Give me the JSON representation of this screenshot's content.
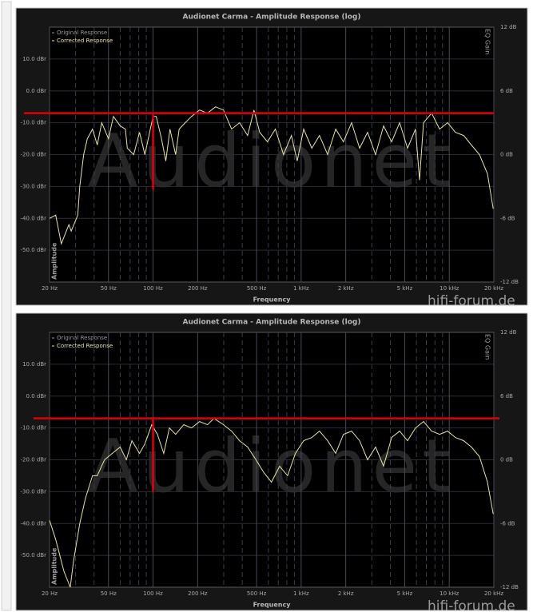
{
  "chart_data": [
    {
      "type": "line",
      "title": "Audionet Carma - Amplitude Response (log)",
      "x_label": "Frequency",
      "y_label": "Amplitude",
      "y2_label": "EQ Gain",
      "watermark": "Audionet",
      "site_watermark": "hifi-forum.de",
      "log_x": true,
      "grid": true,
      "xlim": [
        20,
        20000
      ],
      "ylim": [
        -60,
        20
      ],
      "y2lim": [
        -12,
        12
      ],
      "xticks": [
        {
          "value": 20,
          "label": "20 Hz"
        },
        {
          "value": 50,
          "label": "50 Hz"
        },
        {
          "value": 100,
          "label": "100 Hz"
        },
        {
          "value": 200,
          "label": "200 Hz"
        },
        {
          "value": 500,
          "label": "500 Hz"
        },
        {
          "value": 1000,
          "label": "1 kHz"
        },
        {
          "value": 2000,
          "label": "2 kHz"
        },
        {
          "value": 5000,
          "label": "5 kHz"
        },
        {
          "value": 10000,
          "label": "10 kHz"
        },
        {
          "value": 20000,
          "label": "20 kHz"
        }
      ],
      "xminorticks": [
        30,
        40,
        60,
        70,
        80,
        90,
        300,
        400,
        600,
        700,
        800,
        900,
        3000,
        4000,
        6000,
        7000,
        8000,
        9000
      ],
      "yticks": [
        {
          "value": -50,
          "label": "-50.0 dBr"
        },
        {
          "value": -40,
          "label": "-40.0 dBr"
        },
        {
          "value": -30,
          "label": "-30.0 dBr"
        },
        {
          "value": -20,
          "label": "-20.0 dBr"
        },
        {
          "value": -10,
          "label": "-10.0 dBr"
        },
        {
          "value": 0,
          "label": "0.0 dBr"
        },
        {
          "value": 10,
          "label": "10.0 dBr"
        }
      ],
      "y2ticks": [
        {
          "value": -12,
          "label": "-12 dB"
        },
        {
          "value": -6,
          "label": "-6 dB"
        },
        {
          "value": 0,
          "label": "0 dB"
        },
        {
          "value": 6,
          "label": "6 dB"
        },
        {
          "value": 12,
          "label": "12 dB"
        }
      ],
      "x": [
        20,
        22,
        24,
        27,
        28,
        31,
        32,
        34,
        36,
        39,
        42,
        45,
        50,
        54,
        60,
        65,
        67,
        74,
        81,
        88,
        100,
        105,
        114,
        122,
        130,
        142,
        150,
        165,
        182,
        206,
        233,
        264,
        299,
        339,
        384,
        435,
        480,
        525,
        592,
        670,
        760,
        860,
        940,
        1040,
        1180,
        1330,
        1510,
        1710,
        1930,
        2190,
        2480,
        2810,
        3180,
        3600,
        4080,
        4620,
        5230,
        5920,
        6300,
        6700,
        7600,
        8600,
        9740,
        11000,
        12500,
        14100,
        16000,
        18100,
        19800
      ],
      "series": [
        {
          "name": "Original Response",
          "color": "#9a9a9a",
          "values": [
            null,
            null,
            null,
            null,
            null,
            null,
            null,
            null,
            null,
            null,
            null,
            null,
            null,
            null,
            null,
            null,
            null,
            null,
            null,
            null,
            null,
            null,
            null,
            null,
            null,
            null,
            null,
            null,
            null,
            null,
            null,
            null,
            null,
            null,
            null,
            null,
            null,
            null,
            null,
            null,
            null,
            null,
            null,
            null,
            null,
            null,
            null,
            null,
            null,
            null,
            null,
            null,
            null,
            null,
            null,
            null,
            null,
            null,
            null,
            null,
            null,
            null,
            null,
            null,
            null,
            null,
            null,
            null,
            null
          ]
        },
        {
          "name": "Corrected Response",
          "color": "#e8e2a8",
          "values": [
            -40,
            -39,
            -48,
            -42,
            -44,
            -39,
            -30,
            -20,
            -15,
            -12,
            -17,
            -10,
            -15,
            -8,
            -11,
            -12,
            -18,
            -20,
            -13,
            -20,
            -8,
            -8,
            -15,
            -22,
            -12,
            -20,
            -12,
            -10,
            -8,
            -6,
            -7,
            -5,
            -6,
            -12,
            -10,
            -14,
            -6,
            -13,
            -16,
            -12,
            -20,
            -14,
            -22,
            -12,
            -18,
            -14,
            -20,
            -12,
            -16,
            -10,
            -18,
            -13,
            -20,
            -11,
            -16,
            -10,
            -18,
            -12,
            -28,
            -10,
            -7,
            -12,
            -10,
            -13,
            -14,
            -17,
            -20,
            -26,
            -37
          ]
        }
      ],
      "annotation_lines": {
        "color": "#e0000c",
        "hline": -7,
        "vline_x": 100,
        "vline_y": [
          -7,
          -31
        ]
      }
    },
    {
      "type": "line",
      "title": "Audionet Carma - Amplitude Response (log)",
      "x_label": "Frequency",
      "y_label": "Amplitude",
      "y2_label": "EQ Gain",
      "watermark": "Audionet",
      "site_watermark": "hifi-forum.de",
      "log_x": true,
      "grid": true,
      "xlim": [
        20,
        20000
      ],
      "ylim": [
        -60,
        20
      ],
      "y2lim": [
        -12,
        12
      ],
      "xticks": [
        {
          "value": 20,
          "label": "20 Hz"
        },
        {
          "value": 50,
          "label": "50 Hz"
        },
        {
          "value": 100,
          "label": "100 Hz"
        },
        {
          "value": 200,
          "label": "200 Hz"
        },
        {
          "value": 500,
          "label": "500 Hz"
        },
        {
          "value": 1000,
          "label": "1 kHz"
        },
        {
          "value": 2000,
          "label": "2 kHz"
        },
        {
          "value": 5000,
          "label": "5 kHz"
        },
        {
          "value": 10000,
          "label": "10 kHz"
        },
        {
          "value": 20000,
          "label": "20 kHz"
        }
      ],
      "xminorticks": [
        30,
        40,
        60,
        70,
        80,
        90,
        300,
        400,
        600,
        700,
        800,
        900,
        3000,
        4000,
        6000,
        7000,
        8000,
        9000
      ],
      "yticks": [
        {
          "value": -50,
          "label": "-50.0 dBr"
        },
        {
          "value": -40,
          "label": "-40.0 dBr"
        },
        {
          "value": -30,
          "label": "-30.0 dBr"
        },
        {
          "value": -20,
          "label": "-20.0 dBr"
        },
        {
          "value": -10,
          "label": "-10.0 dBr"
        },
        {
          "value": 0,
          "label": "0.0 dBr"
        },
        {
          "value": 10,
          "label": "10.0 dBr"
        }
      ],
      "y2ticks": [
        {
          "value": -12,
          "label": "-12 dB"
        },
        {
          "value": -6,
          "label": "-6 dB"
        },
        {
          "value": 0,
          "label": "0 dB"
        },
        {
          "value": 6,
          "label": "6 dB"
        },
        {
          "value": 12,
          "label": "12 dB"
        }
      ],
      "x": [
        20,
        22,
        25,
        27.6,
        29,
        32,
        35,
        39,
        42,
        47,
        53,
        60,
        66,
        72,
        81,
        88,
        98,
        107,
        118,
        129,
        142,
        161,
        182,
        206,
        233,
        258,
        299,
        339,
        384,
        435,
        495,
        560,
        630,
        715,
        810,
        915,
        1040,
        1180,
        1330,
        1510,
        1710,
        1930,
        2190,
        2480,
        2810,
        3180,
        3600,
        4080,
        4620,
        5230,
        5920,
        6700,
        7600,
        8600,
        9740,
        11000,
        12500,
        14100,
        16000,
        18100,
        19800
      ],
      "series": [
        {
          "name": "Original Response",
          "color": "#9a9a9a",
          "values": [
            null,
            null,
            null,
            null,
            null,
            null,
            null,
            null,
            null,
            null,
            null,
            null,
            null,
            null,
            null,
            null,
            null,
            null,
            null,
            null,
            null,
            null,
            null,
            null,
            null,
            null,
            null,
            null,
            null,
            null,
            null,
            null,
            null,
            null,
            null,
            null,
            null,
            null,
            null,
            null,
            null,
            null,
            null,
            null,
            null,
            null,
            null,
            null,
            null,
            null,
            null,
            null,
            null,
            null,
            null,
            null,
            null,
            null,
            null,
            null,
            null
          ]
        },
        {
          "name": "Corrected Response",
          "color": "#e8e2a8",
          "values": [
            -39,
            -45,
            -55,
            -60,
            -52,
            -40,
            -32,
            -25,
            -25,
            -20,
            -18,
            -16,
            -20,
            -14,
            -18,
            -15,
            -9,
            -12,
            -18,
            -10,
            -12,
            -9,
            -10,
            -8,
            -9,
            -7,
            -9,
            -11,
            -14,
            -16,
            -20,
            -24,
            -27,
            -22,
            -25,
            -18,
            -14,
            -13,
            -11,
            -14,
            -18,
            -12,
            -11,
            -14,
            -20,
            -16,
            -22,
            -13,
            -11,
            -14,
            -10,
            -8,
            -11,
            -12,
            -11,
            -13,
            -14,
            -16,
            -19,
            -27,
            -37
          ]
        }
      ],
      "annotation_lines": {
        "color": "#e0000c",
        "hline": -7,
        "vline_x": 100,
        "vline_y": [
          -7,
          -30
        ]
      }
    }
  ]
}
